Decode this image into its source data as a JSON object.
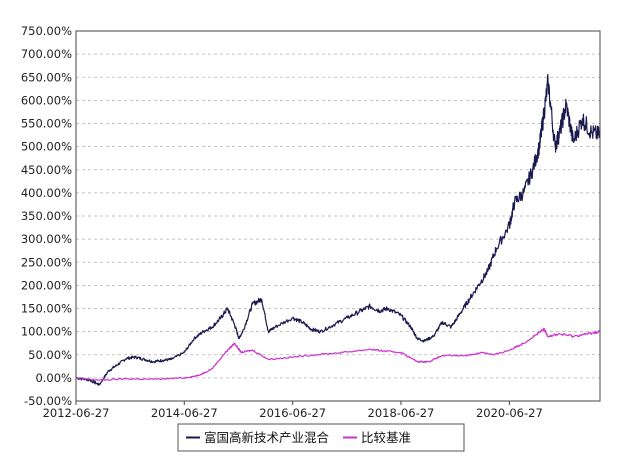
{
  "chart_data": {
    "type": "line",
    "title": "",
    "xlabel": "",
    "ylabel": "",
    "xlim": [
      "2012-06-27",
      "2022-02-28"
    ],
    "ylim": [
      -50,
      750
    ],
    "yticks": [
      "-50.00%",
      "0.00%",
      "50.00%",
      "100.00%",
      "150.00%",
      "200.00%",
      "250.00%",
      "300.00%",
      "350.00%",
      "400.00%",
      "450.00%",
      "500.00%",
      "550.00%",
      "600.00%",
      "650.00%",
      "700.00%",
      "750.00%"
    ],
    "xticks": [
      "2012-06-27",
      "2014-06-27",
      "2016-06-27",
      "2018-06-27",
      "2020-06-27"
    ],
    "grid": "horizontal dashed",
    "legend_position": "bottom-center",
    "series": [
      {
        "name": "富国高新技术产业混合",
        "color": "#1a1a4e",
        "x": [
          "2012-06-27",
          "2012-10-01",
          "2012-12-01",
          "2013-02-01",
          "2013-04-01",
          "2013-06-01",
          "2013-08-01",
          "2013-10-01",
          "2013-12-01",
          "2014-02-01",
          "2014-04-01",
          "2014-06-27",
          "2014-09-01",
          "2014-11-01",
          "2015-01-01",
          "2015-03-01",
          "2015-04-15",
          "2015-06-01",
          "2015-07-01",
          "2015-08-01",
          "2015-10-01",
          "2015-12-01",
          "2016-01-15",
          "2016-03-01",
          "2016-06-27",
          "2016-09-01",
          "2016-11-01",
          "2017-01-01",
          "2017-04-01",
          "2017-07-01",
          "2017-10-01",
          "2017-12-01",
          "2018-02-01",
          "2018-04-01",
          "2018-06-27",
          "2018-09-01",
          "2018-10-15",
          "2018-12-01",
          "2019-02-01",
          "2019-04-01",
          "2019-06-01",
          "2019-08-01",
          "2019-10-01",
          "2019-12-01",
          "2020-02-01",
          "2020-04-01",
          "2020-06-27",
          "2020-08-01",
          "2020-10-01",
          "2020-12-01",
          "2021-01-15",
          "2021-02-10",
          "2021-03-15",
          "2021-05-01",
          "2021-06-01",
          "2021-07-15",
          "2021-09-01",
          "2021-11-01",
          "2022-01-01",
          "2022-02-28"
        ],
        "y": [
          0,
          -5,
          -15,
          15,
          28,
          42,
          45,
          40,
          35,
          38,
          40,
          55,
          85,
          100,
          110,
          130,
          150,
          115,
          85,
          105,
          160,
          170,
          100,
          110,
          130,
          120,
          105,
          100,
          115,
          130,
          145,
          155,
          145,
          150,
          135,
          110,
          85,
          80,
          90,
          120,
          110,
          140,
          170,
          200,
          230,
          280,
          330,
          380,
          400,
          450,
          500,
          560,
          640,
          500,
          530,
          590,
          510,
          560,
          530,
          525
        ]
      },
      {
        "name": "比较基准",
        "color": "#cc33cc",
        "x": [
          "2012-06-27",
          "2012-12-01",
          "2013-06-01",
          "2013-12-01",
          "2014-06-27",
          "2014-10-01",
          "2015-01-01",
          "2015-04-01",
          "2015-06-01",
          "2015-07-15",
          "2015-10-01",
          "2016-01-15",
          "2016-06-27",
          "2016-12-01",
          "2017-06-01",
          "2017-12-01",
          "2018-03-01",
          "2018-06-27",
          "2018-10-15",
          "2019-01-01",
          "2019-04-01",
          "2019-09-01",
          "2020-01-01",
          "2020-03-15",
          "2020-06-27",
          "2020-10-01",
          "2021-01-01",
          "2021-02-15",
          "2021-03-15",
          "2021-06-01",
          "2021-09-01",
          "2021-12-01",
          "2022-02-28"
        ],
        "y": [
          0,
          -5,
          -2,
          -3,
          0,
          5,
          20,
          55,
          75,
          55,
          60,
          40,
          45,
          50,
          55,
          62,
          58,
          55,
          35,
          35,
          48,
          48,
          55,
          50,
          60,
          75,
          95,
          105,
          90,
          95,
          90,
          95,
          100
        ]
      }
    ]
  }
}
